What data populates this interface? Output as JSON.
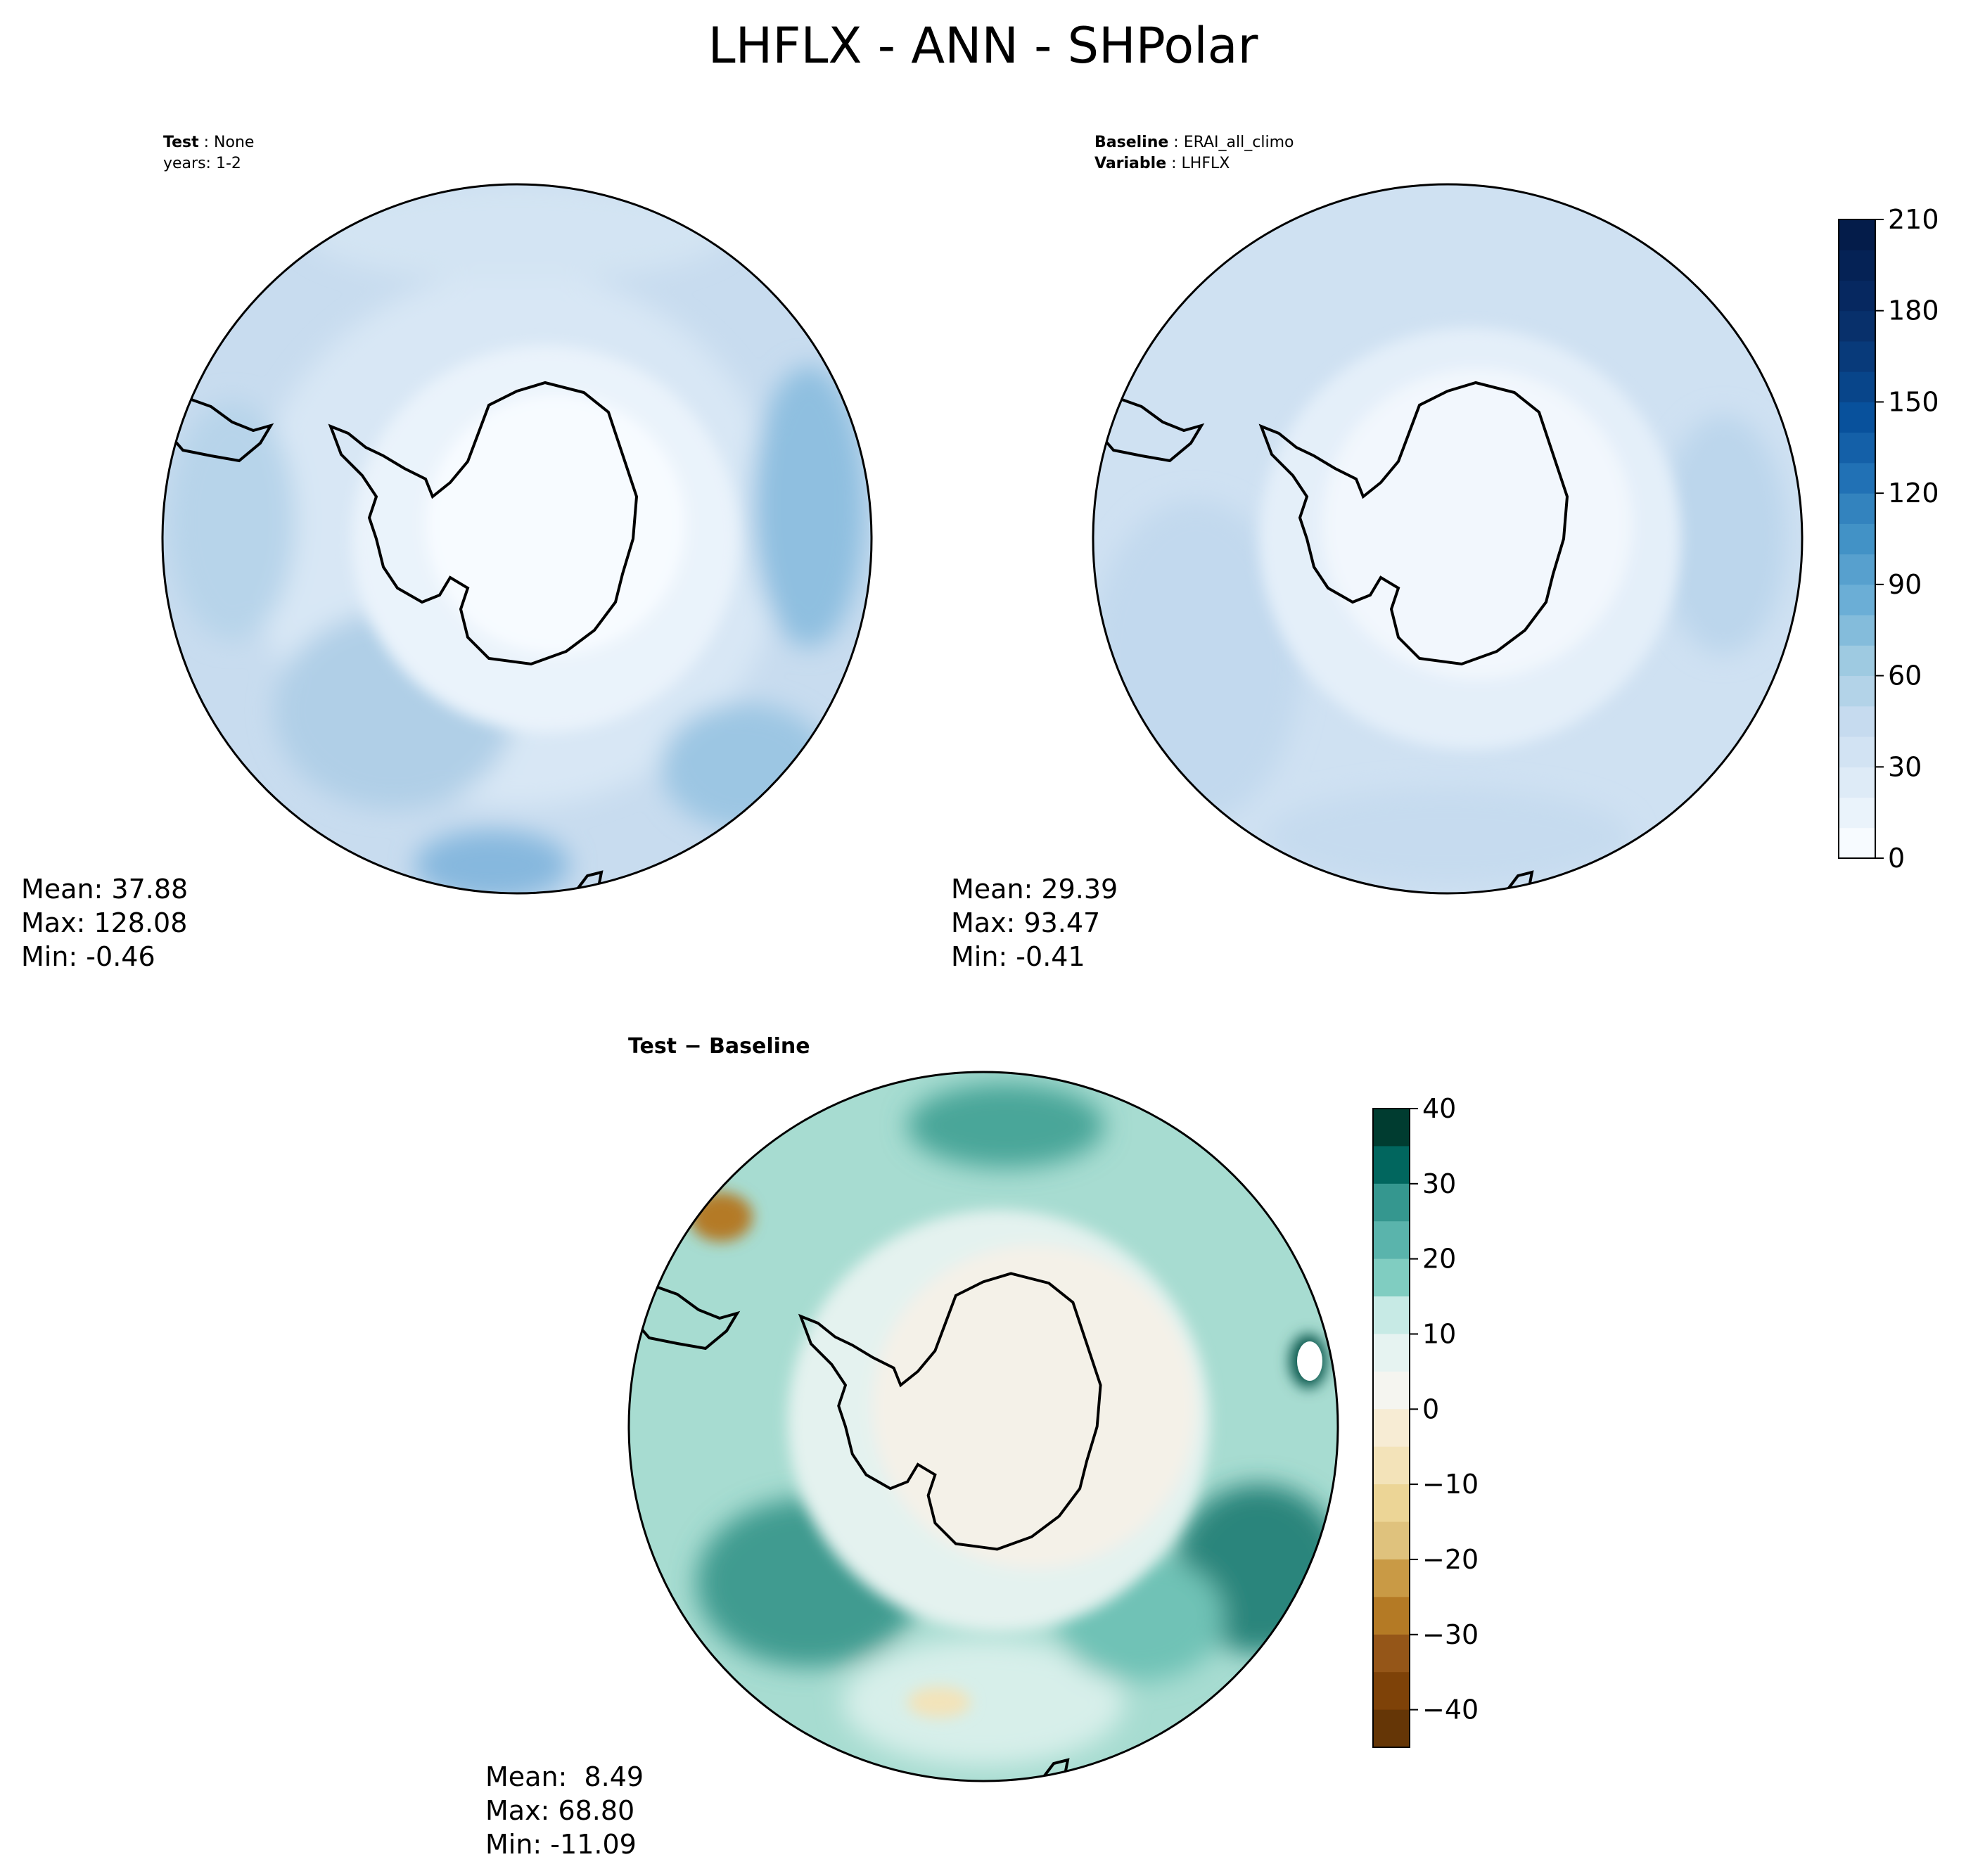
{
  "title": "LHFLX - ANN - SHPolar",
  "panels": {
    "test": {
      "label_key": "Test",
      "label_value": "None",
      "line2": "years: 1-2",
      "stats": [
        "Mean: 37.88",
        "Max: 128.08",
        "Min: -0.46"
      ]
    },
    "baseline": {
      "label_key": "Baseline",
      "label_value": "ERAI_all_climo",
      "var_key": "Variable",
      "var_value": "LHFLX",
      "stats": [
        "Mean: 29.39",
        "Max: 93.47",
        "Min: -0.41"
      ]
    },
    "diff": {
      "title": "Test − Baseline",
      "stats": [
        "Mean:  8.49",
        "Max: 68.80",
        "Min: -11.09"
      ]
    }
  },
  "chart_data": [
    {
      "type": "heatmap",
      "projection": "south-polar-stereographic",
      "panel": "test",
      "colormap": "Blues",
      "colorbar": {
        "ticks": [
          0,
          30,
          60,
          90,
          120,
          150,
          180,
          210
        ],
        "ticklabels": [
          "0",
          "30",
          "60",
          "90",
          "120",
          "150",
          "180",
          "210"
        ],
        "range": [
          0,
          210
        ],
        "levels": 21,
        "colors": [
          "#f7fbff",
          "#eaf3fb",
          "#deebf7",
          "#d2e3f3",
          "#c6dbef",
          "#b3d3e8",
          "#9ecae1",
          "#84bcdb",
          "#6baed6",
          "#57a0ce",
          "#4292c6",
          "#3383be",
          "#2171b5",
          "#1460a8",
          "#08519c",
          "#08458a",
          "#083a7a",
          "#08306b",
          "#062860",
          "#052255",
          "#041c4a"
        ]
      },
      "field_summary": {
        "mean": 37.88,
        "max": 128.08,
        "min": -0.46
      }
    },
    {
      "type": "heatmap",
      "projection": "south-polar-stereographic",
      "panel": "baseline",
      "colormap": "Blues",
      "field_summary": {
        "mean": 29.39,
        "max": 93.47,
        "min": -0.41
      }
    },
    {
      "type": "heatmap",
      "projection": "south-polar-stereographic",
      "panel": "diff",
      "colormap": "BrBG",
      "colorbar": {
        "ticks": [
          40,
          30,
          20,
          10,
          0,
          -10,
          -20,
          -30,
          -40
        ],
        "ticklabels": [
          "40",
          "30",
          "20",
          "10",
          "0",
          "−10",
          "−20",
          "−30",
          "−40"
        ],
        "range": [
          -45,
          40
        ],
        "levels_top_to_bottom": [
          "#003c30",
          "#01665e",
          "#35978f",
          "#5ab4ac",
          "#80cdc1",
          "#c7eae5",
          "#e6f3f1",
          "#f5f5f0",
          "#f7ecd4",
          "#f3e3b9",
          "#ecd596",
          "#dfc27d",
          "#c99a45",
          "#b47a25",
          "#955618",
          "#7e4208",
          "#653606"
        ]
      },
      "field_summary": {
        "mean": 8.49,
        "max": 68.8,
        "min": -11.09
      }
    }
  ]
}
